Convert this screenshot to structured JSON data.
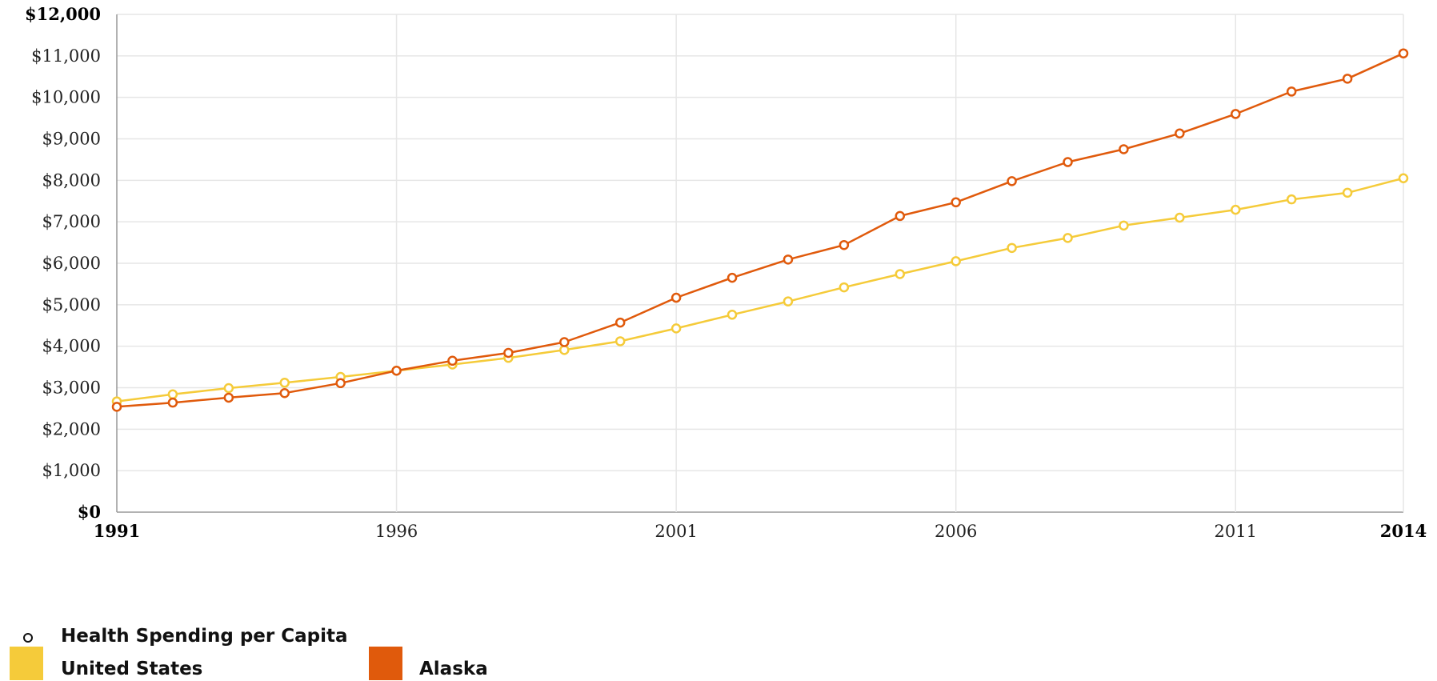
{
  "chart_data": {
    "type": "line",
    "x": [
      1991,
      1992,
      1993,
      1994,
      1995,
      1996,
      1997,
      1998,
      1999,
      2000,
      2001,
      2002,
      2003,
      2004,
      2005,
      2006,
      2007,
      2008,
      2009,
      2010,
      2011,
      2012,
      2013,
      2014
    ],
    "series": [
      {
        "name": "United States",
        "color": "#f5cb3a",
        "values": [
          2670,
          2840,
          2990,
          3120,
          3260,
          3410,
          3560,
          3720,
          3910,
          4120,
          4430,
          4760,
          5080,
          5420,
          5740,
          6050,
          6370,
          6610,
          6910,
          7100,
          7290,
          7540,
          7700,
          8050
        ]
      },
      {
        "name": "Alaska",
        "color": "#e05a0c",
        "values": [
          2540,
          2640,
          2760,
          2870,
          3110,
          3410,
          3650,
          3840,
          4100,
          4570,
          5170,
          5650,
          6090,
          6440,
          7140,
          7470,
          7980,
          8440,
          8750,
          9130,
          9600,
          10140,
          10450,
          11060
        ]
      }
    ],
    "ylim": [
      0,
      12000
    ],
    "xlim": [
      1991,
      2014
    ],
    "y_ticks": [
      "$0",
      "$1,000",
      "$2,000",
      "$3,000",
      "$4,000",
      "$5,000",
      "$6,000",
      "$7,000",
      "$8,000",
      "$9,000",
      "$10,000",
      "$11,000",
      "$12,000"
    ],
    "x_ticks": [
      "1991",
      "1996",
      "2001",
      "2006",
      "2011",
      "2014"
    ],
    "grid": true,
    "legend_position": "bottom-left",
    "marker_legend": "Health Spending per Capita",
    "title": "",
    "xlabel": "",
    "ylabel": ""
  }
}
